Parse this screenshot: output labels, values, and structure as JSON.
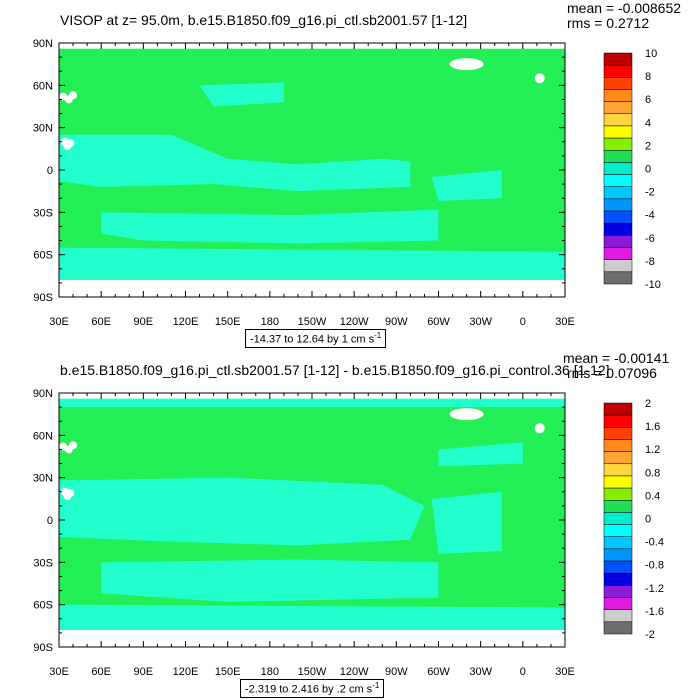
{
  "chart_data": [
    {
      "type": "heatmap",
      "title": "VISOP at z=  95.0m, b.e15.B1850.f09_g16.pi_ctl.sb2001.57 [1-12]",
      "stats": {
        "mean": "mean = -0.008652",
        "rms": "rms = 0.2712"
      },
      "x_ticks": [
        "30E",
        "60E",
        "90E",
        "120E",
        "150E",
        "180",
        "150W",
        "120W",
        "90W",
        "60W",
        "30W",
        "0",
        "30E"
      ],
      "y_ticks": [
        "90N",
        "60N",
        "30N",
        "0",
        "30S",
        "60S",
        "90S"
      ],
      "xlim": [
        30,
        390
      ],
      "ylim": [
        -90,
        90
      ],
      "range_label": "-14.37 to 12.64 by 1 cm s",
      "range_sup": "-1",
      "dominant_level": "0 to 2",
      "colorbar": {
        "labels": [
          "10",
          "8",
          "6",
          "4",
          "2",
          "0",
          "-2",
          "-4",
          "-6",
          "-8",
          "-10"
        ],
        "colors": [
          "#c00000",
          "#ff0000",
          "#ff4000",
          "#ff8c1a",
          "#ffa533",
          "#ffd740",
          "#ffff00",
          "#88ee00",
          "#22dd55",
          "#00eecc",
          "#00ffff",
          "#00c8ff",
          "#0096ff",
          "#0050ff",
          "#0000e0",
          "#8c1ad9",
          "#e01ae0",
          "#cccccc",
          "#6e6e6e"
        ]
      }
    },
    {
      "type": "heatmap",
      "title": "b.e15.B1850.f09_g16.pi_ctl.sb2001.57 [1-12] - b.e15.B1850.f09_g16.pi_control.36 [1-12]",
      "stats": {
        "mean": "mean = -0.00141",
        "rms": "rms = 0.07096"
      },
      "x_ticks": [
        "30E",
        "60E",
        "90E",
        "120E",
        "150E",
        "180",
        "150W",
        "120W",
        "90W",
        "60W",
        "30W",
        "0",
        "30E"
      ],
      "y_ticks": [
        "90N",
        "60N",
        "30N",
        "0",
        "30S",
        "60S",
        "90S"
      ],
      "xlim": [
        30,
        390
      ],
      "ylim": [
        -90,
        90
      ],
      "range_label": "-2.319 to 2.416 by .2 cm s",
      "range_sup": "-1",
      "dominant_level": "0 to 0.2",
      "colorbar": {
        "labels": [
          "2",
          "1.6",
          "1.2",
          "0.8",
          "0.4",
          "0",
          "-0.4",
          "-0.8",
          "-1.2",
          "-1.6",
          "-2"
        ],
        "colors": [
          "#c00000",
          "#ff0000",
          "#ff4000",
          "#ff8c1a",
          "#ffa533",
          "#ffd740",
          "#ffff00",
          "#88ee00",
          "#22dd55",
          "#00eecc",
          "#00ffff",
          "#00c8ff",
          "#0096ff",
          "#0050ff",
          "#0000e0",
          "#8c1ad9",
          "#e01ae0",
          "#cccccc",
          "#6e6e6e"
        ]
      }
    }
  ]
}
